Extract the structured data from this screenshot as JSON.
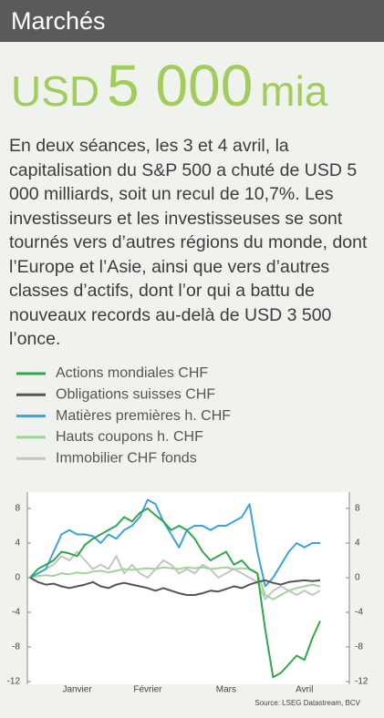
{
  "header": {
    "title": "Marchés"
  },
  "headline": {
    "currency": "USD",
    "amount": "5 000",
    "unit": "mia"
  },
  "body": "En deux séances, les 3 et 4 avril, la capitalisation du S&P 500 a chuté de USD 5 000 milliards, soit un recul de 10,7%. Les investisseurs et les investisseuses se sont tournés vers d’autres régions du monde, dont l’Europe et l’Asie, ainsi que vers d’autres classes d’actifs, dont l’or qui a battu de nouveaux records au-delà de USD 3 500 l’once.",
  "chart_data": {
    "type": "line",
    "categories": [
      null,
      null,
      null,
      null,
      null,
      null,
      "Janvier",
      null,
      null,
      null,
      null,
      null,
      null,
      null,
      null,
      "Février",
      null,
      null,
      null,
      null,
      null,
      null,
      null,
      null,
      null,
      "Mars",
      null,
      null,
      null,
      null,
      null,
      null,
      null,
      null,
      null,
      "Avril",
      null,
      null
    ],
    "series": [
      {
        "name": "Actions mondiales CHF",
        "color": "#2ea84a",
        "values": [
          0,
          1,
          1.5,
          2,
          3,
          2.8,
          2.5,
          3.8,
          4.5,
          5,
          5.5,
          6,
          7,
          6.5,
          7.5,
          8,
          7.2,
          6.5,
          5.5,
          6,
          5.5,
          4.5,
          3,
          2,
          2.5,
          3,
          1.5,
          2,
          1,
          0.5,
          -6,
          -11.5,
          -11,
          -10,
          -9,
          -9.5,
          -7,
          -5
        ]
      },
      {
        "name": "Obligations suisses CHF",
        "color": "#555555",
        "values": [
          0,
          -0.5,
          -0.8,
          -0.7,
          -1,
          -1.2,
          -1,
          -0.8,
          -0.5,
          -1,
          -1.2,
          -0.8,
          -0.6,
          -0.8,
          -1,
          -1.2,
          -1.5,
          -1.2,
          -1.5,
          -1.8,
          -2,
          -2,
          -1.8,
          -1.5,
          -1.6,
          -1.3,
          -1,
          -1.2,
          -0.8,
          -0.5,
          -0.3,
          -0.6,
          -0.8,
          -0.5,
          -0.4,
          -0.3,
          -0.4,
          -0.3
        ]
      },
      {
        "name": "Matières premières h. CHF",
        "color": "#3aa3dc",
        "values": [
          0,
          0.5,
          1,
          3,
          5,
          5.5,
          5,
          5,
          4.8,
          4,
          5,
          4.5,
          5.5,
          6,
          7,
          9,
          8.5,
          6.5,
          5,
          3.5,
          5.5,
          6,
          6,
          5.5,
          6,
          6,
          6.5,
          7,
          8.5,
          3,
          -1,
          0,
          1.5,
          3,
          4,
          3.5,
          4,
          4
        ]
      },
      {
        "name": "Hauts coupons h. CHF",
        "color": "#9fd49a",
        "values": [
          0,
          0.2,
          0.3,
          0.2,
          0.5,
          0.4,
          0.6,
          0.5,
          0.7,
          0.8,
          0.6,
          0.8,
          1,
          0.9,
          1,
          1.1,
          1,
          1.2,
          1.1,
          1,
          1.2,
          1.1,
          1.2,
          1,
          1.1,
          1.2,
          1,
          1.1,
          1,
          0.5,
          -2,
          -2.5,
          -2,
          -1.5,
          -1.2,
          -1,
          -0.8,
          -1
        ]
      },
      {
        "name": "Immobilier CHF fonds",
        "color": "#c4c4c4",
        "values": [
          0,
          0.5,
          1,
          1.5,
          2.5,
          2,
          3,
          2,
          1,
          1.5,
          1,
          2.5,
          0.5,
          1.5,
          0.5,
          0,
          1,
          2,
          1.5,
          0.5,
          1,
          0.5,
          1.5,
          1,
          0,
          0.5,
          1,
          0.5,
          0,
          -0.5,
          -2.5,
          -1.5,
          -1,
          -1.5,
          -2,
          -1.5,
          -2,
          -1.5
        ]
      }
    ],
    "ylim": [
      -12,
      8
    ],
    "yticks": [
      -12,
      -8,
      -4,
      0,
      4,
      8
    ],
    "grid": false,
    "source": "Source: LSEG Datastream, BCV"
  }
}
